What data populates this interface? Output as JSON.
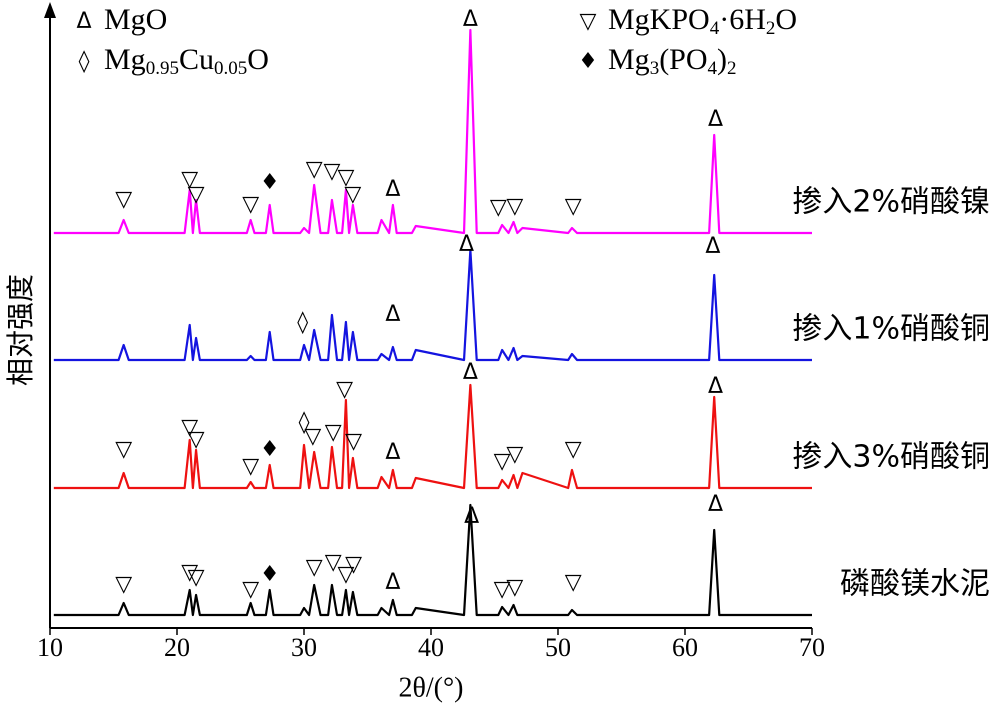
{
  "chart_data": {
    "type": "line",
    "xlabel": "2θ/(°)",
    "ylabel": "相对强度",
    "xlim": [
      10,
      70
    ],
    "xticks": [
      10,
      20,
      30,
      40,
      50,
      60,
      70
    ],
    "ylim": [
      0,
      618
    ],
    "grid": false,
    "x": [
      10.3,
      15.4,
      15.8,
      16.2,
      20.6,
      21.0,
      21.25,
      21.5,
      21.8,
      25.5,
      25.8,
      26.1,
      27.0,
      27.3,
      27.6,
      29.7,
      30.0,
      30.4,
      30.8,
      31.3,
      31.9,
      32.2,
      32.6,
      33.0,
      33.3,
      33.55,
      33.85,
      34.2,
      35.8,
      36.1,
      36.7,
      37.0,
      37.3,
      38.5,
      38.8,
      42.6,
      43.1,
      43.6,
      45.3,
      45.6,
      46.1,
      46.5,
      46.8,
      47.2,
      50.8,
      51.1,
      51.5,
      61.9,
      62.3,
      62.7,
      70
    ],
    "series": [
      {
        "name": "磷酸镁水泥",
        "color": "#000000",
        "values": [
          13,
          13,
          25,
          13,
          13,
          38,
          13,
          33,
          13,
          13,
          25,
          13,
          13,
          38,
          13,
          13,
          20,
          13,
          43,
          13,
          13,
          43,
          13,
          13,
          38,
          13,
          36,
          13,
          13,
          20,
          13,
          28,
          13,
          13,
          20,
          13,
          123,
          13,
          13,
          21,
          13,
          23,
          13,
          13,
          13,
          18,
          13,
          13,
          98,
          13,
          13
        ]
      },
      {
        "name": "掺入3%硝酸铜",
        "color": "#ee1111",
        "values": [
          140,
          140,
          155,
          140,
          140,
          188,
          140,
          178,
          140,
          140,
          146,
          140,
          140,
          163,
          140,
          140,
          183,
          140,
          176,
          140,
          140,
          181,
          140,
          140,
          228,
          140,
          170,
          140,
          140,
          151,
          140,
          158,
          140,
          140,
          150,
          140,
          243,
          140,
          140,
          148,
          140,
          153,
          140,
          155,
          140,
          158,
          140,
          140,
          231,
          140,
          140
        ]
      },
      {
        "name": "掺入1%硝酸铜",
        "color": "#1414e0",
        "values": [
          268,
          268,
          283,
          268,
          268,
          303,
          268,
          290,
          268,
          268,
          272,
          268,
          268,
          296,
          268,
          268,
          283,
          268,
          298,
          268,
          268,
          313,
          268,
          268,
          306,
          268,
          296,
          268,
          268,
          274,
          268,
          281,
          268,
          268,
          278,
          268,
          378,
          268,
          268,
          278,
          268,
          280,
          268,
          272,
          268,
          274,
          268,
          268,
          353,
          268,
          268
        ]
      },
      {
        "name": "掺入2%硝酸镍",
        "color": "#ff00ff",
        "values": [
          395,
          395,
          408,
          395,
          395,
          438,
          395,
          428,
          395,
          395,
          408,
          395,
          395,
          423,
          395,
          395,
          400,
          395,
          443,
          395,
          395,
          428,
          395,
          395,
          438,
          395,
          423,
          395,
          395,
          408,
          395,
          423,
          395,
          395,
          402,
          395,
          598,
          395,
          395,
          403,
          395,
          406,
          395,
          400,
          395,
          400,
          395,
          395,
          493,
          395,
          395
        ]
      }
    ],
    "phase_legend": [
      {
        "symbol": "Δ",
        "parts": [
          {
            "t": "MgO"
          }
        ]
      },
      {
        "symbol": "◊",
        "parts": [
          {
            "t": "Mg"
          },
          {
            "t": "0.95",
            "sub": true
          },
          {
            "t": "Cu"
          },
          {
            "t": "0.05",
            "sub": true
          },
          {
            "t": "O"
          }
        ]
      },
      {
        "symbol": "▽",
        "parts": [
          {
            "t": "MgKPO"
          },
          {
            "t": "4",
            "sub": true
          },
          {
            "t": "·6H"
          },
          {
            "t": "2",
            "sub": true
          },
          {
            "t": "O"
          }
        ]
      },
      {
        "symbol": "♦",
        "parts": [
          {
            "t": "Mg"
          },
          {
            "t": "3",
            "sub": true
          },
          {
            "t": "(PO"
          },
          {
            "t": "4",
            "sub": true
          },
          {
            "t": ")"
          },
          {
            "t": "2",
            "sub": true
          }
        ]
      }
    ],
    "annotations": [
      {
        "text": "▽",
        "x": 15.8,
        "y": 428
      },
      {
        "text": "▽",
        "x": 21.0,
        "y": 448
      },
      {
        "text": "▽",
        "x": 21.5,
        "y": 433
      },
      {
        "text": "▽",
        "x": 25.8,
        "y": 423
      },
      {
        "text": "♦",
        "x": 27.3,
        "y": 445
      },
      {
        "text": "▽",
        "x": 30.8,
        "y": 458
      },
      {
        "text": "▽",
        "x": 32.2,
        "y": 456
      },
      {
        "text": "▽",
        "x": 33.3,
        "y": 450
      },
      {
        "text": "▽",
        "x": 33.85,
        "y": 433
      },
      {
        "text": "Δ",
        "x": 37.0,
        "y": 438
      },
      {
        "text": "▽",
        "x": 45.3,
        "y": 420
      },
      {
        "text": "▽",
        "x": 46.6,
        "y": 421
      },
      {
        "text": "▽",
        "x": 51.2,
        "y": 421
      },
      {
        "text": "Δ",
        "x": 43.1,
        "y": 608
      },
      {
        "text": "Δ",
        "x": 62.4,
        "y": 508
      },
      {
        "text": "Δ",
        "x": 42.8,
        "y": 383
      },
      {
        "text": "Δ",
        "x": 62.2,
        "y": 381
      },
      {
        "text": "◊",
        "x": 29.9,
        "y": 305
      },
      {
        "text": "Δ",
        "x": 37.0,
        "y": 313
      },
      {
        "text": "Δ",
        "x": 43.1,
        "y": 255
      },
      {
        "text": "Δ",
        "x": 62.4,
        "y": 241
      },
      {
        "text": "▽",
        "x": 15.8,
        "y": 178
      },
      {
        "text": "▽",
        "x": 21.0,
        "y": 200
      },
      {
        "text": "▽",
        "x": 21.5,
        "y": 188
      },
      {
        "text": "▽",
        "x": 25.8,
        "y": 161
      },
      {
        "text": "♦",
        "x": 27.3,
        "y": 178
      },
      {
        "text": "◊",
        "x": 30.0,
        "y": 205
      },
      {
        "text": "▽",
        "x": 30.7,
        "y": 191
      },
      {
        "text": "▽",
        "x": 32.3,
        "y": 195
      },
      {
        "text": "▽",
        "x": 33.2,
        "y": 238
      },
      {
        "text": "▽",
        "x": 33.9,
        "y": 186
      },
      {
        "text": "Δ",
        "x": 37.0,
        "y": 175
      },
      {
        "text": "▽",
        "x": 45.6,
        "y": 166
      },
      {
        "text": "▽",
        "x": 46.6,
        "y": 173
      },
      {
        "text": "▽",
        "x": 51.2,
        "y": 178
      },
      {
        "text": "Δ",
        "x": 43.2,
        "y": 111
      },
      {
        "text": "Δ",
        "x": 62.4,
        "y": 123
      },
      {
        "text": "▽",
        "x": 15.8,
        "y": 43
      },
      {
        "text": "▽",
        "x": 21.0,
        "y": 55
      },
      {
        "text": "▽",
        "x": 21.5,
        "y": 50
      },
      {
        "text": "▽",
        "x": 25.8,
        "y": 38
      },
      {
        "text": "♦",
        "x": 27.3,
        "y": 53
      },
      {
        "text": "▽",
        "x": 30.8,
        "y": 60
      },
      {
        "text": "▽",
        "x": 32.3,
        "y": 65
      },
      {
        "text": "▽",
        "x": 33.3,
        "y": 53
      },
      {
        "text": "▽",
        "x": 33.9,
        "y": 63
      },
      {
        "text": "Δ",
        "x": 37.0,
        "y": 45
      },
      {
        "text": "▽",
        "x": 45.6,
        "y": 38
      },
      {
        "text": "▽",
        "x": 46.6,
        "y": 40
      },
      {
        "text": "▽",
        "x": 51.2,
        "y": 45
      }
    ]
  }
}
